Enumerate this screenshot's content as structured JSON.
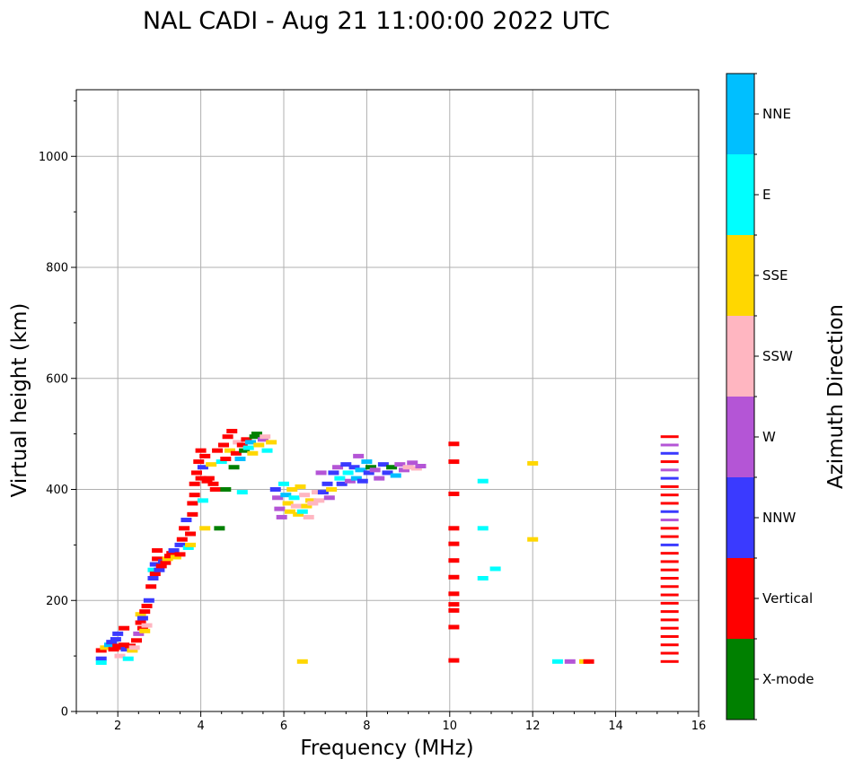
{
  "chart_data": {
    "type": "scatter",
    "title": "NAL CADI - Aug 21 11:00:00 2022 UTC",
    "xlabel": "Frequency (MHz)",
    "ylabel": "Virtual height (km)",
    "xlim": [
      1,
      16
    ],
    "ylim": [
      0,
      1120
    ],
    "xticks": [
      2,
      4,
      6,
      8,
      10,
      12,
      14,
      16
    ],
    "yticks": [
      0,
      200,
      400,
      600,
      800,
      1000
    ],
    "grid": true,
    "colorbar": {
      "label": "Azimuth Direction",
      "categories": [
        {
          "name": "X-mode",
          "color": "#008000"
        },
        {
          "name": "Vertical",
          "color": "#ff0000"
        },
        {
          "name": "NNW",
          "color": "#3a3aff"
        },
        {
          "name": "W",
          "color": "#b455d6"
        },
        {
          "name": "SSW",
          "color": "#ffb6c1"
        },
        {
          "name": "SSE",
          "color": "#ffd700"
        },
        {
          "name": "E",
          "color": "#00ffff"
        },
        {
          "name": "NNE",
          "color": "#00bfff"
        }
      ]
    },
    "echoes": [
      [
        1.6,
        110,
        "Vertical"
      ],
      [
        1.6,
        95,
        "NNW"
      ],
      [
        1.6,
        88,
        "E"
      ],
      [
        1.7,
        115,
        "SSE"
      ],
      [
        1.8,
        120,
        "NNE"
      ],
      [
        1.85,
        125,
        "NNW"
      ],
      [
        1.9,
        112,
        "Vertical"
      ],
      [
        1.95,
        130,
        "NNW"
      ],
      [
        2.0,
        118,
        "Vertical"
      ],
      [
        2.0,
        140,
        "NNW"
      ],
      [
        2.05,
        100,
        "SSW"
      ],
      [
        2.1,
        115,
        "Vertical"
      ],
      [
        2.15,
        120,
        "Vertical"
      ],
      [
        2.15,
        150,
        "Vertical"
      ],
      [
        2.2,
        112,
        "NNW"
      ],
      [
        2.25,
        95,
        "E"
      ],
      [
        2.3,
        118,
        "Vertical"
      ],
      [
        2.35,
        110,
        "SSE"
      ],
      [
        2.4,
        115,
        "SSW"
      ],
      [
        2.45,
        128,
        "Vertical"
      ],
      [
        2.5,
        140,
        "W"
      ],
      [
        2.55,
        160,
        "Vertical"
      ],
      [
        2.55,
        175,
        "SSE"
      ],
      [
        2.6,
        150,
        "Vertical"
      ],
      [
        2.6,
        168,
        "NNW"
      ],
      [
        2.65,
        145,
        "SSE"
      ],
      [
        2.65,
        180,
        "Vertical"
      ],
      [
        2.7,
        155,
        "SSW"
      ],
      [
        2.7,
        190,
        "Vertical"
      ],
      [
        2.75,
        200,
        "NNW"
      ],
      [
        2.8,
        225,
        "Vertical"
      ],
      [
        2.85,
        240,
        "NNW"
      ],
      [
        2.85,
        255,
        "E"
      ],
      [
        2.9,
        248,
        "Vertical"
      ],
      [
        2.9,
        265,
        "NNW"
      ],
      [
        2.95,
        275,
        "Vertical"
      ],
      [
        2.95,
        290,
        "Vertical"
      ],
      [
        3.0,
        255,
        "NNW"
      ],
      [
        3.05,
        262,
        "Vertical"
      ],
      [
        3.1,
        270,
        "NNW"
      ],
      [
        3.15,
        268,
        "Vertical"
      ],
      [
        3.2,
        275,
        "SSE"
      ],
      [
        3.25,
        280,
        "Vertical"
      ],
      [
        3.3,
        285,
        "Vertical"
      ],
      [
        3.35,
        290,
        "NNW"
      ],
      [
        3.4,
        278,
        "SSE"
      ],
      [
        3.5,
        300,
        "NNW"
      ],
      [
        3.5,
        283,
        "Vertical"
      ],
      [
        3.55,
        310,
        "Vertical"
      ],
      [
        3.6,
        330,
        "Vertical"
      ],
      [
        3.65,
        345,
        "NNW"
      ],
      [
        3.7,
        295,
        "E"
      ],
      [
        3.75,
        300,
        "SSE"
      ],
      [
        3.75,
        320,
        "Vertical"
      ],
      [
        3.8,
        355,
        "Vertical"
      ],
      [
        3.8,
        375,
        "Vertical"
      ],
      [
        3.85,
        390,
        "Vertical"
      ],
      [
        3.85,
        410,
        "Vertical"
      ],
      [
        3.9,
        430,
        "Vertical"
      ],
      [
        3.95,
        450,
        "Vertical"
      ],
      [
        4.0,
        420,
        "Vertical"
      ],
      [
        4.0,
        470,
        "Vertical"
      ],
      [
        4.05,
        440,
        "NNW"
      ],
      [
        4.05,
        380,
        "E"
      ],
      [
        4.1,
        330,
        "SSE"
      ],
      [
        4.1,
        460,
        "Vertical"
      ],
      [
        4.15,
        415,
        "Vertical"
      ],
      [
        4.2,
        420,
        "Vertical"
      ],
      [
        4.25,
        445,
        "SSE"
      ],
      [
        4.3,
        410,
        "Vertical"
      ],
      [
        4.35,
        400,
        "Vertical"
      ],
      [
        4.4,
        470,
        "Vertical"
      ],
      [
        4.45,
        330,
        "X-mode"
      ],
      [
        4.5,
        450,
        "E"
      ],
      [
        4.55,
        480,
        "Vertical"
      ],
      [
        4.6,
        455,
        "Vertical"
      ],
      [
        4.6,
        400,
        "X-mode"
      ],
      [
        4.65,
        495,
        "Vertical"
      ],
      [
        4.7,
        470,
        "SSE"
      ],
      [
        4.75,
        505,
        "Vertical"
      ],
      [
        4.8,
        440,
        "X-mode"
      ],
      [
        4.85,
        465,
        "Vertical"
      ],
      [
        4.9,
        485,
        "SSW"
      ],
      [
        4.95,
        455,
        "NNE"
      ],
      [
        5.0,
        480,
        "Vertical"
      ],
      [
        5.0,
        395,
        "E"
      ],
      [
        5.05,
        470,
        "X-mode"
      ],
      [
        5.1,
        490,
        "Vertical"
      ],
      [
        5.15,
        475,
        "E"
      ],
      [
        5.2,
        485,
        "NNE"
      ],
      [
        5.25,
        465,
        "SSE"
      ],
      [
        5.3,
        495,
        "X-mode"
      ],
      [
        5.35,
        500,
        "X-mode"
      ],
      [
        5.4,
        480,
        "SSE"
      ],
      [
        5.5,
        490,
        "W"
      ],
      [
        5.55,
        495,
        "SSW"
      ],
      [
        5.6,
        470,
        "E"
      ],
      [
        5.7,
        485,
        "SSE"
      ],
      [
        5.8,
        400,
        "NNW"
      ],
      [
        5.85,
        385,
        "W"
      ],
      [
        5.9,
        365,
        "W"
      ],
      [
        5.95,
        350,
        "W"
      ],
      [
        6.0,
        410,
        "E"
      ],
      [
        6.05,
        390,
        "NNE"
      ],
      [
        6.1,
        375,
        "SSE"
      ],
      [
        6.15,
        360,
        "SSE"
      ],
      [
        6.2,
        400,
        "SSE"
      ],
      [
        6.25,
        385,
        "E"
      ],
      [
        6.3,
        370,
        "SSW"
      ],
      [
        6.35,
        355,
        "SSE"
      ],
      [
        6.4,
        405,
        "SSE"
      ],
      [
        6.45,
        360,
        "E"
      ],
      [
        6.5,
        390,
        "SSW"
      ],
      [
        6.55,
        370,
        "SSE"
      ],
      [
        6.6,
        350,
        "SSW"
      ],
      [
        6.65,
        380,
        "SSE"
      ],
      [
        6.7,
        375,
        "SSW"
      ],
      [
        6.8,
        395,
        "SSW"
      ],
      [
        6.85,
        380,
        "SSW"
      ],
      [
        6.9,
        430,
        "W"
      ],
      [
        6.95,
        395,
        "NNW"
      ],
      [
        7.05,
        410,
        "NNW"
      ],
      [
        7.1,
        385,
        "W"
      ],
      [
        7.15,
        400,
        "SSE"
      ],
      [
        7.2,
        430,
        "NNW"
      ],
      [
        7.3,
        440,
        "W"
      ],
      [
        7.35,
        420,
        "E"
      ],
      [
        7.4,
        410,
        "NNW"
      ],
      [
        7.5,
        445,
        "NNW"
      ],
      [
        7.55,
        430,
        "E"
      ],
      [
        7.6,
        415,
        "W"
      ],
      [
        7.7,
        440,
        "NNW"
      ],
      [
        7.75,
        420,
        "NNE"
      ],
      [
        7.8,
        460,
        "W"
      ],
      [
        7.85,
        435,
        "NNE"
      ],
      [
        7.9,
        415,
        "NNW"
      ],
      [
        8.0,
        450,
        "NNE"
      ],
      [
        8.05,
        430,
        "NNW"
      ],
      [
        8.1,
        440,
        "X-mode"
      ],
      [
        8.2,
        435,
        "W"
      ],
      [
        8.3,
        420,
        "W"
      ],
      [
        8.4,
        445,
        "NNW"
      ],
      [
        8.5,
        430,
        "NNW"
      ],
      [
        8.6,
        440,
        "X-mode"
      ],
      [
        8.7,
        425,
        "NNE"
      ],
      [
        8.8,
        445,
        "W"
      ],
      [
        8.9,
        435,
        "W"
      ],
      [
        9.0,
        440,
        "SSW"
      ],
      [
        9.1,
        448,
        "W"
      ],
      [
        9.2,
        438,
        "SSW"
      ],
      [
        9.3,
        442,
        "W"
      ],
      [
        10.1,
        482,
        "Vertical"
      ],
      [
        10.1,
        450,
        "Vertical"
      ],
      [
        10.1,
        392,
        "Vertical"
      ],
      [
        10.1,
        330,
        "Vertical"
      ],
      [
        10.1,
        302,
        "Vertical"
      ],
      [
        10.1,
        272,
        "Vertical"
      ],
      [
        10.1,
        242,
        "Vertical"
      ],
      [
        10.1,
        212,
        "Vertical"
      ],
      [
        10.1,
        193,
        "Vertical"
      ],
      [
        10.1,
        182,
        "Vertical"
      ],
      [
        10.1,
        152,
        "Vertical"
      ],
      [
        10.1,
        92,
        "Vertical"
      ],
      [
        10.8,
        415,
        "E"
      ],
      [
        10.8,
        330,
        "E"
      ],
      [
        11.1,
        257,
        "E"
      ],
      [
        10.8,
        240,
        "E"
      ],
      [
        12.0,
        447,
        "SSE"
      ],
      [
        12.0,
        310,
        "SSE"
      ],
      [
        12.6,
        90,
        "E"
      ],
      [
        12.9,
        90,
        "W"
      ],
      [
        13.25,
        90,
        "SSE"
      ],
      [
        13.35,
        90,
        "Vertical"
      ],
      [
        6.45,
        90,
        "SSE"
      ]
    ],
    "track_15mhz": {
      "x": 15.3,
      "heights": [
        90,
        105,
        120,
        135,
        150,
        165,
        180,
        195,
        210,
        225,
        240,
        255,
        270,
        285,
        300,
        315,
        330,
        345,
        360,
        375,
        390,
        405,
        420,
        435,
        450,
        465,
        480,
        495
      ],
      "azimuths": [
        "Vertical",
        "Vertical",
        "Vertical",
        "Vertical",
        "Vertical",
        "Vertical",
        "Vertical",
        "Vertical",
        "Vertical",
        "Vertical",
        "Vertical",
        "Vertical",
        "Vertical",
        "Vertical",
        "NNW",
        "Vertical",
        "Vertical",
        "W",
        "NNW",
        "Vertical",
        "Vertical",
        "Vertical",
        "NNW",
        "W",
        "Vertical",
        "NNW",
        "W",
        "Vertical"
      ]
    }
  }
}
